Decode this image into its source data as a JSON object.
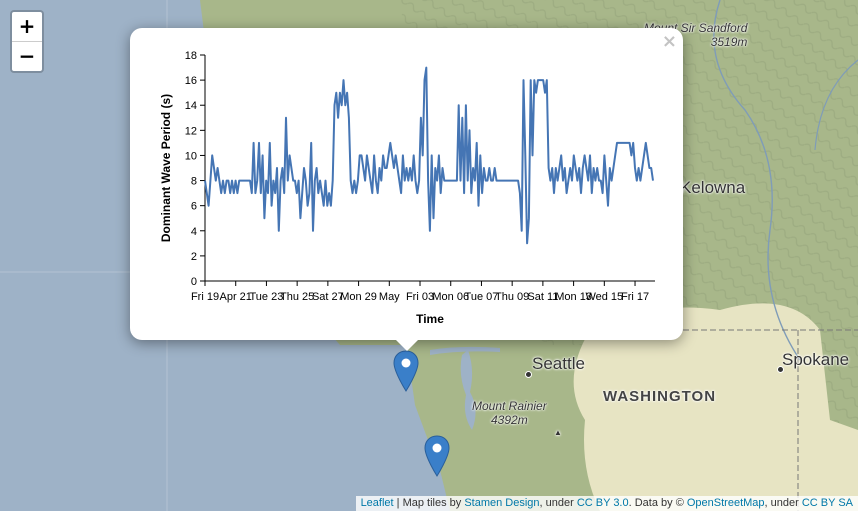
{
  "map": {
    "labels": {
      "seattle": "Seattle",
      "spokane": "Spokane",
      "kelowna": "Kelowna",
      "washington": "WASHINGTON",
      "mount_rainier_name": "Mount Rainier",
      "mount_rainier_elev": "4392m",
      "mount_sir_sandford_name": "Mount Sir Sandford",
      "mount_sir_sandford_elev": "3519m"
    },
    "colors": {
      "ocean": "#9eb2c7",
      "land": "#a8b78a",
      "dry_land": "#e7e4c3",
      "mountain": "#8a9a72",
      "water_line": "#7f9cb8",
      "marker": "#3a7fc9"
    }
  },
  "zoom": {
    "in_label": "+",
    "out_label": "−"
  },
  "popup": {
    "close_label": "×",
    "chart_data": {
      "type": "line",
      "title": "",
      "xlabel": "Time",
      "ylabel": "Dominant Wave Period (s)",
      "ylim": [
        0,
        18
      ],
      "yticks": [
        0,
        2,
        4,
        6,
        8,
        10,
        12,
        14,
        16,
        18
      ],
      "xticks": [
        "Fri 19",
        "Apr 21",
        "Tue 23",
        "Thu 25",
        "Sat 27",
        "Mon 29",
        "May",
        "Fri 03",
        "Mon 06",
        "Tue 07",
        "Thu 09",
        "Sat 11",
        "Mon 13",
        "Wed 15",
        "Fri 17"
      ],
      "series": [
        {
          "name": "",
          "color": "#4575b4",
          "values": [
            8,
            7,
            6,
            8,
            10,
            9,
            8,
            9,
            8,
            7,
            8,
            7,
            8,
            8,
            7,
            8,
            7,
            8,
            7,
            8,
            8,
            8,
            8,
            8,
            8,
            8,
            7,
            11,
            7,
            8,
            11,
            7,
            10,
            5,
            8,
            7,
            11,
            6,
            8,
            7,
            9,
            4,
            8,
            9,
            7,
            13,
            8,
            10,
            9,
            8,
            8,
            7,
            8,
            5,
            7,
            9,
            8,
            6,
            7,
            11,
            4,
            8,
            9,
            7,
            8,
            7,
            6,
            8,
            6,
            7,
            6,
            8,
            14,
            15,
            13,
            15,
            14,
            16,
            14,
            15,
            13,
            8,
            7,
            8,
            7,
            8,
            10,
            10,
            9,
            8,
            10,
            9,
            8,
            7,
            10,
            8,
            7,
            9,
            8,
            10,
            9,
            9,
            10,
            11,
            10,
            9,
            10,
            9,
            8,
            7,
            10,
            8,
            9,
            8,
            9,
            8,
            10,
            8,
            7,
            8,
            13,
            10,
            16,
            17,
            8,
            4,
            10,
            5,
            9,
            8,
            10,
            7,
            9,
            8,
            8,
            8,
            8,
            8,
            8,
            8,
            8,
            14,
            8,
            13,
            7,
            14,
            8,
            12,
            7,
            9,
            8,
            11,
            6,
            10,
            7,
            9,
            8,
            8,
            9,
            8,
            8,
            9,
            8,
            8,
            8,
            8,
            8,
            8,
            8,
            8,
            8,
            8,
            8,
            8,
            8,
            7,
            4,
            16,
            10,
            3,
            5,
            16,
            10,
            16,
            15,
            16,
            16,
            16,
            16,
            15,
            16,
            9,
            8,
            9,
            7,
            9,
            8,
            9,
            10,
            8,
            9,
            7,
            8,
            9,
            8,
            10,
            9,
            8,
            9,
            7,
            9,
            10,
            9,
            8,
            10,
            7,
            9,
            8,
            9,
            8,
            8,
            7,
            10,
            8,
            6,
            9,
            8,
            9,
            10,
            11,
            11,
            11,
            11,
            11,
            11,
            11,
            11,
            10,
            11,
            9,
            8,
            9,
            8,
            9,
            10,
            11,
            10,
            9,
            9,
            8
          ]
        }
      ]
    }
  },
  "attribution": {
    "leaflet": "Leaflet",
    "sep1": " | Map tiles by ",
    "stamen": "Stamen Design",
    "under1": ", under ",
    "ccby": "CC BY 3.0",
    "data_by": ". Data by © ",
    "osm": "OpenStreetMap",
    "under2": ", under ",
    "ccbysa": "CC BY SA"
  }
}
